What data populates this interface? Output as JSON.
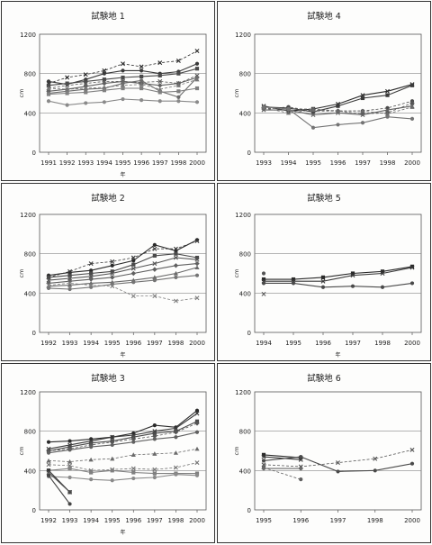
{
  "chart_data": [
    {
      "type": "line",
      "title": "試験地 1",
      "xlabel": "年",
      "ylabel": "cm",
      "ylim": [
        0,
        1200
      ],
      "yticks": [
        "0",
        "400",
        "800",
        "1200"
      ],
      "categories": [
        "1991",
        "1992",
        "1993",
        "1994",
        "1995",
        "1996",
        "1997",
        "1998",
        "2000"
      ],
      "series": [
        {
          "values": [
            700,
            760,
            790,
            830,
            900,
            870,
            910,
            930,
            1030
          ],
          "marker": "x",
          "dash": true
        },
        {
          "values": [
            720,
            690,
            740,
            800,
            830,
            830,
            800,
            820,
            900
          ],
          "marker": "o",
          "dash": false
        },
        {
          "values": [
            680,
            700,
            720,
            740,
            760,
            770,
            780,
            800,
            850
          ],
          "marker": "s",
          "dash": false
        },
        {
          "values": [
            650,
            680,
            700,
            720,
            720,
            710,
            720,
            700,
            780
          ],
          "marker": "x",
          "dash": true
        },
        {
          "values": [
            620,
            640,
            670,
            700,
            720,
            700,
            680,
            700,
            760
          ],
          "marker": "d",
          "dash": false
        },
        {
          "values": [
            600,
            620,
            640,
            650,
            700,
            730,
            620,
            560,
            760
          ],
          "marker": "o",
          "dash": false
        },
        {
          "values": [
            650,
            640,
            650,
            660,
            680,
            690,
            640,
            680,
            740
          ],
          "marker": "t",
          "dash": true
        },
        {
          "values": [
            590,
            600,
            610,
            630,
            650,
            650,
            610,
            620,
            650
          ],
          "marker": "s",
          "dash": false
        },
        {
          "values": [
            520,
            480,
            500,
            510,
            540,
            530,
            520,
            520,
            510
          ],
          "marker": "o",
          "dash": false
        }
      ]
    },
    {
      "type": "line",
      "title": "試験地 4",
      "xlabel": "",
      "ylabel": "cm",
      "ylim": [
        0,
        1200
      ],
      "yticks": [
        "0",
        "400",
        "800",
        "1200"
      ],
      "categories": [
        "1993",
        "1994",
        "1995",
        "1996",
        "1997",
        "1998",
        "2000"
      ],
      "series": [
        {
          "values": [
            470,
            420,
            440,
            490,
            580,
            620,
            690
          ],
          "marker": "x",
          "dash": false
        },
        {
          "values": [
            460,
            450,
            410,
            470,
            550,
            580,
            680
          ],
          "marker": "s",
          "dash": false
        },
        {
          "values": [
            440,
            460,
            420,
            420,
            420,
            450,
            520
          ],
          "marker": "o",
          "dash": true
        },
        {
          "values": [
            450,
            440,
            440,
            420,
            390,
            400,
            500
          ],
          "marker": "d",
          "dash": true
        },
        {
          "values": [
            430,
            430,
            380,
            400,
            380,
            430,
            470
          ],
          "marker": "x",
          "dash": false
        },
        {
          "values": [
            450,
            400,
            430,
            420,
            420,
            390,
            460
          ],
          "marker": "t",
          "dash": true
        },
        {
          "values": [
            460,
            440,
            250,
            280,
            300,
            360,
            340
          ],
          "marker": "o",
          "dash": false
        }
      ]
    },
    {
      "type": "line",
      "title": "試験地 2",
      "xlabel": "年",
      "ylabel": "cm",
      "ylim": [
        0,
        1200
      ],
      "yticks": [
        "0",
        "400",
        "800",
        "1200"
      ],
      "categories": [
        "1992",
        "1993",
        "1994",
        "1995",
        "1996",
        "1997",
        "1998",
        "2000"
      ],
      "series": [
        {
          "values": [
            580,
            610,
            630,
            680,
            730,
            890,
            830,
            940
          ],
          "marker": "o",
          "dash": false
        },
        {
          "values": [
            560,
            620,
            700,
            720,
            760,
            850,
            850,
            930
          ],
          "marker": "x",
          "dash": true
        },
        {
          "values": [
            560,
            580,
            600,
            620,
            690,
            780,
            800,
            760
          ],
          "marker": "s",
          "dash": false
        },
        {
          "values": [
            530,
            550,
            570,
            600,
            650,
            700,
            760,
            740
          ],
          "marker": "x",
          "dash": false
        },
        {
          "values": [
            500,
            520,
            540,
            560,
            600,
            640,
            680,
            700
          ],
          "marker": "d",
          "dash": false
        },
        {
          "values": [
            470,
            480,
            500,
            510,
            530,
            560,
            600,
            660
          ],
          "marker": "t",
          "dash": false
        },
        {
          "values": [
            450,
            440,
            460,
            490,
            510,
            530,
            560,
            580
          ],
          "marker": "o",
          "dash": false
        },
        {
          "values": [
            480,
            500,
            480,
            470,
            370,
            370,
            320,
            350
          ],
          "marker": "x",
          "dash": true
        }
      ]
    },
    {
      "type": "line",
      "title": "試験地 5",
      "xlabel": "年",
      "ylabel": "cm",
      "ylim": [
        0,
        1200
      ],
      "yticks": [
        "0",
        "400",
        "800",
        "1200"
      ],
      "categories": [
        "1994",
        "1995",
        "1996",
        "1997",
        "1998",
        "2000"
      ],
      "series": [
        {
          "values": [
            540,
            540,
            560,
            600,
            620,
            670
          ],
          "marker": "s",
          "dash": false
        },
        {
          "values": [
            520,
            520,
            520,
            580,
            600,
            660
          ],
          "marker": "x",
          "dash": false
        },
        {
          "values": [
            500,
            500,
            460,
            470,
            460,
            500
          ],
          "marker": "o",
          "dash": false
        },
        {
          "values": [
            600,
            null,
            null,
            null,
            null,
            null
          ],
          "marker": "o",
          "dash": false
        },
        {
          "values": [
            390,
            null,
            null,
            null,
            null,
            null
          ],
          "marker": "x",
          "dash": false
        }
      ]
    },
    {
      "type": "line",
      "title": "試験地 3",
      "xlabel": "年",
      "ylabel": "cm",
      "ylim": [
        0,
        1200
      ],
      "yticks": [
        "0",
        "400",
        "800",
        "1200"
      ],
      "categories": [
        "1992",
        "1993",
        "1994",
        "1995",
        "1996",
        "1997",
        "1998",
        "2000"
      ],
      "series": [
        {
          "values": [
            690,
            700,
            720,
            740,
            780,
            860,
            840,
            1010
          ],
          "marker": "o",
          "dash": false
        },
        {
          "values": [
            620,
            660,
            700,
            740,
            760,
            800,
            830,
            980
          ],
          "marker": "x",
          "dash": false
        },
        {
          "values": [
            600,
            640,
            680,
            700,
            740,
            780,
            800,
            900
          ],
          "marker": "s",
          "dash": false
        },
        {
          "values": [
            600,
            620,
            660,
            690,
            720,
            750,
            790,
            880
          ],
          "marker": "d",
          "dash": true
        },
        {
          "values": [
            580,
            610,
            640,
            660,
            690,
            720,
            740,
            790
          ],
          "marker": "o",
          "dash": false
        },
        {
          "values": [
            500,
            490,
            510,
            520,
            560,
            570,
            580,
            620
          ],
          "marker": "t",
          "dash": true
        },
        {
          "values": [
            460,
            450,
            400,
            410,
            420,
            410,
            430,
            480
          ],
          "marker": "x",
          "dash": true
        },
        {
          "values": [
            400,
            420,
            380,
            400,
            380,
            370,
            370,
            370
          ],
          "marker": "s",
          "dash": false
        },
        {
          "values": [
            340,
            330,
            310,
            300,
            320,
            330,
            360,
            350
          ],
          "marker": "o",
          "dash": false
        },
        {
          "values": [
            400,
            180,
            null,
            null,
            null,
            null,
            null,
            null
          ],
          "marker": "s",
          "dash": false
        },
        {
          "values": [
            350,
            60,
            null,
            null,
            null,
            null,
            null,
            null
          ],
          "marker": "o",
          "dash": false
        },
        {
          "values": [
            380,
            180,
            null,
            null,
            null,
            null,
            null,
            null
          ],
          "marker": "x",
          "dash": false
        }
      ]
    },
    {
      "type": "line",
      "title": "試験地 6",
      "xlabel": "",
      "ylabel": "cm",
      "ylim": [
        0,
        1200
      ],
      "yticks": [
        "0",
        "400",
        "800",
        "1200"
      ],
      "categories": [
        "1995",
        "1996",
        "1997",
        "1998",
        "2000"
      ],
      "series": [
        {
          "values": [
            560,
            530,
            null,
            null,
            null
          ],
          "marker": "s",
          "dash": false
        },
        {
          "values": [
            540,
            510,
            null,
            null,
            null
          ],
          "marker": "x",
          "dash": false
        },
        {
          "values": [
            500,
            540,
            390,
            400,
            470
          ],
          "marker": "o",
          "dash": false
        },
        {
          "values": [
            460,
            440,
            480,
            520,
            610
          ],
          "marker": "x",
          "dash": true
        },
        {
          "values": [
            430,
            310,
            null,
            null,
            null
          ],
          "marker": "o",
          "dash": true
        },
        {
          "values": [
            420,
            420,
            null,
            null,
            null
          ],
          "marker": "d",
          "dash": false
        }
      ]
    }
  ]
}
